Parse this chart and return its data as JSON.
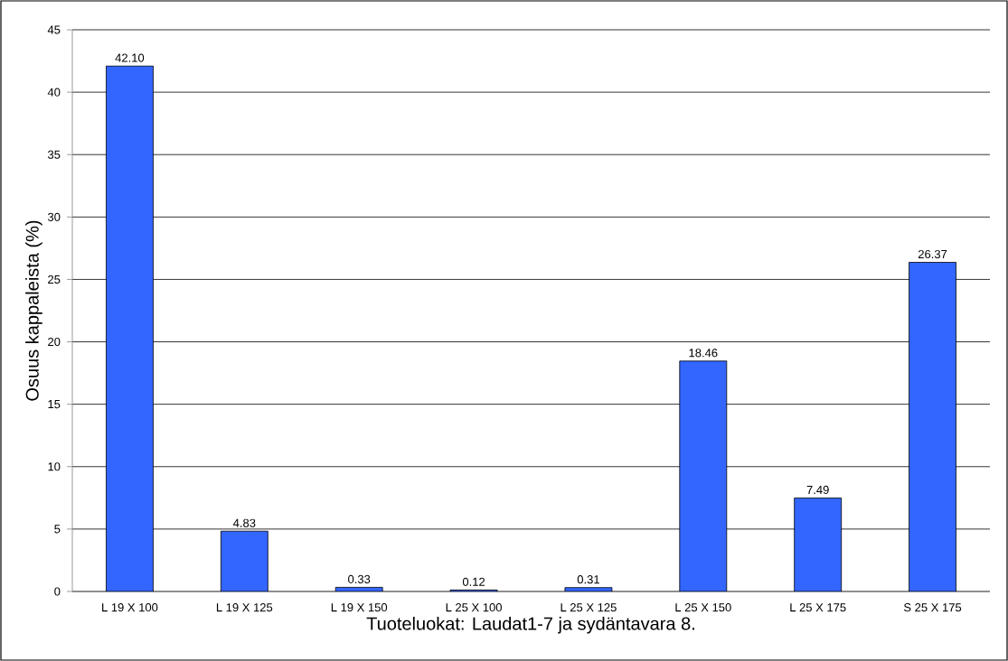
{
  "chart_data": {
    "type": "bar",
    "xlabel": "Tuoteluokat: Laudat1-7 ja sydäntavara 8.",
    "ylabel": "Osuus kappaleista (%)",
    "categories": [
      "L 19 X 100",
      "L 19 X 125",
      "L 19 X 150",
      "L 25 X 100",
      "L 25 X 125",
      "L 25 X 150",
      "L 25 X 175",
      "S 25 X 175"
    ],
    "values": [
      42.1,
      4.83,
      0.33,
      0.12,
      0.31,
      18.46,
      7.49,
      26.37
    ],
    "value_labels": [
      "42.10",
      "4.83",
      "0.33",
      "0.12",
      "0.31",
      "18.46",
      "7.49",
      "26.37"
    ],
    "color": "#3366ff",
    "ylim": [
      0,
      45
    ],
    "yticks": [
      0,
      5,
      10,
      15,
      20,
      25,
      30,
      35,
      40,
      45
    ],
    "grid": "y"
  }
}
